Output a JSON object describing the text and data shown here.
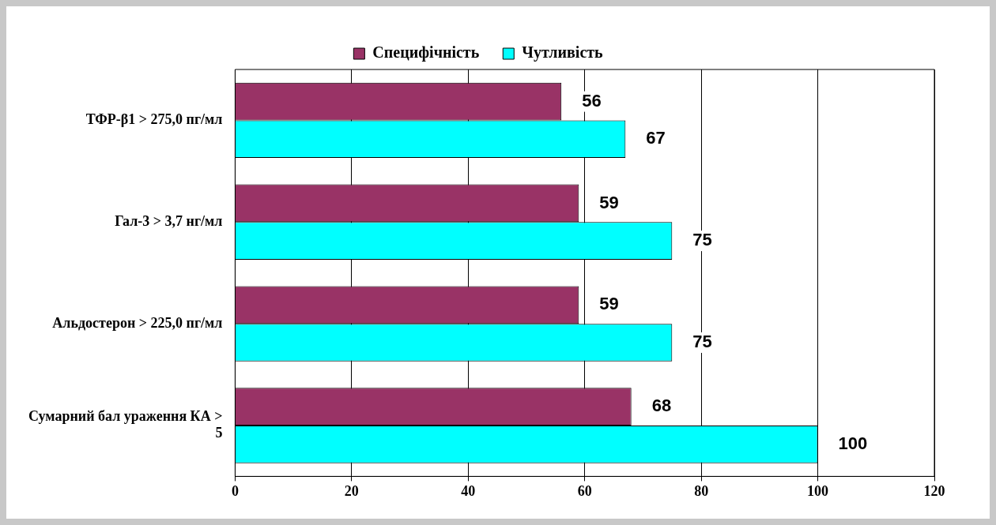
{
  "chart_data": {
    "type": "bar",
    "orientation": "horizontal",
    "categories": [
      "ТФР-β1 > 275,0 пг/мл",
      "Гал-3 > 3,7 нг/мл",
      "Альдостерон > 225,0 пг/мл",
      "Сумарний бал ураження КА > 5"
    ],
    "series": [
      {
        "name": "Специфічність",
        "color": "#993366",
        "values": [
          56,
          59,
          59,
          68
        ]
      },
      {
        "name": "Чутливість",
        "color": "#00ffff",
        "values": [
          67,
          75,
          75,
          100
        ]
      }
    ],
    "xlim": [
      0,
      120
    ],
    "xticks": [
      0,
      20,
      40,
      60,
      80,
      100,
      120
    ],
    "grid": "x",
    "legend": "top",
    "data_labels": true
  }
}
